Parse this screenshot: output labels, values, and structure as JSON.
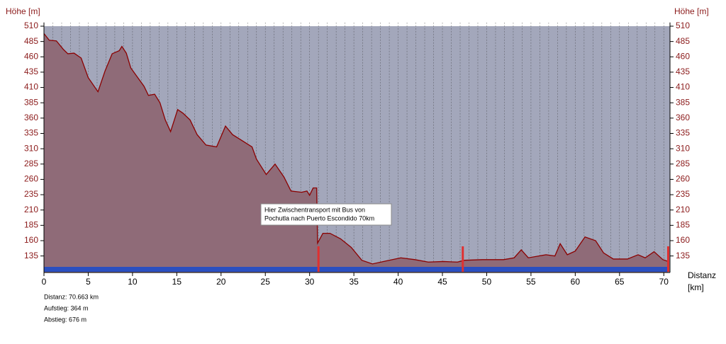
{
  "chart_data": {
    "type": "area",
    "ylabel": "Höhe [m]",
    "xlabel": [
      "Distanz",
      "[km]"
    ],
    "annotation": [
      "Hier Zwischentransport mit Bus von",
      "Pochutla nach Puerto Escondido 70km"
    ],
    "stats": [
      "Distanz: 70.663 km",
      "Aufstieg: 364 m",
      "Abstieg: 676 m"
    ],
    "x": [
      0,
      0.6,
      1.4,
      2.2,
      2.7,
      3.4,
      4.2,
      5.0,
      6.1,
      6.9,
      7.7,
      8.5,
      8.8,
      9.3,
      9.8,
      10.6,
      11.3,
      11.8,
      12.5,
      13.1,
      13.7,
      14.3,
      15.1,
      15.7,
      16.5,
      17.3,
      18.3,
      19.5,
      20.5,
      21.3,
      22.3,
      23.5,
      24.0,
      25.1,
      26.1,
      27.1,
      27.9,
      29.1,
      29.7,
      30.0,
      30.4,
      30.8,
      30.9,
      31.5,
      32.3,
      33.5,
      34.7,
      35.9,
      37.1,
      38.7,
      40.3,
      41.9,
      43.4,
      45.1,
      46.7,
      47.5,
      49.5,
      51.9,
      53.1,
      53.9,
      54.7,
      56.7,
      57.7,
      58.3,
      59.1,
      60.0,
      61.1,
      62.3,
      63.2,
      64.3,
      65.9,
      67.1,
      67.9,
      68.9,
      69.9,
      70.5
    ],
    "values": [
      498,
      487,
      486,
      472,
      465,
      466,
      458,
      426,
      403,
      437,
      465,
      470,
      477,
      466,
      442,
      426,
      412,
      397,
      399,
      385,
      357,
      338,
      374,
      368,
      357,
      333,
      316,
      313,
      347,
      333,
      324,
      313,
      293,
      268,
      285,
      264,
      241,
      239,
      241,
      234,
      246,
      246,
      156,
      172,
      172,
      163,
      149,
      128,
      122,
      127,
      132,
      129,
      125,
      126,
      125,
      128,
      129,
      129,
      132,
      145,
      132,
      137,
      135,
      155,
      137,
      143,
      166,
      160,
      140,
      130,
      130,
      137,
      132,
      142,
      129,
      126
    ],
    "markers_x": [
      31.0,
      47.3,
      70.5
    ],
    "color": "#8b0000",
    "fill": "#8f6b78",
    "background": "#a3a7bb",
    "xlim": [
      0,
      70.7
    ],
    "ylim": [
      108,
      516
    ],
    "xticks": [
      0,
      5,
      10,
      15,
      20,
      25,
      30,
      35,
      40,
      45,
      50,
      55,
      60,
      65,
      70
    ],
    "yticks": [
      135,
      160,
      185,
      210,
      235,
      260,
      285,
      310,
      335,
      360,
      385,
      410,
      435,
      460,
      485,
      510
    ],
    "x_grid_step": 1,
    "grid": true
  }
}
